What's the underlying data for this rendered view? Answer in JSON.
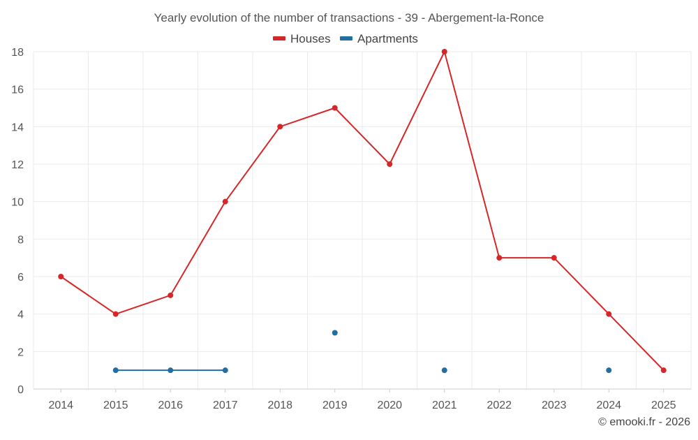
{
  "chart_data": {
    "type": "line",
    "title": "Yearly evolution of the number of transactions - 39 - Abergement-la-Ronce",
    "categories": [
      "2014",
      "2015",
      "2016",
      "2017",
      "2018",
      "2019",
      "2020",
      "2021",
      "2022",
      "2023",
      "2024",
      "2025"
    ],
    "y_ticks": [
      "0",
      "2",
      "4",
      "6",
      "8",
      "10",
      "12",
      "14",
      "16",
      "18"
    ],
    "ylim": [
      0,
      18
    ],
    "grid": true,
    "legend_position": "top-center",
    "series": [
      {
        "name": "Houses",
        "color": "#d62728",
        "values": [
          6,
          4,
          5,
          10,
          14,
          15,
          12,
          18,
          7,
          7,
          4,
          1
        ]
      },
      {
        "name": "Apartments",
        "color": "#1f6fa3",
        "values": [
          null,
          1,
          1,
          1,
          null,
          3,
          null,
          1,
          null,
          null,
          1,
          null
        ]
      }
    ]
  },
  "credit": "© emooki.fr - 2026"
}
